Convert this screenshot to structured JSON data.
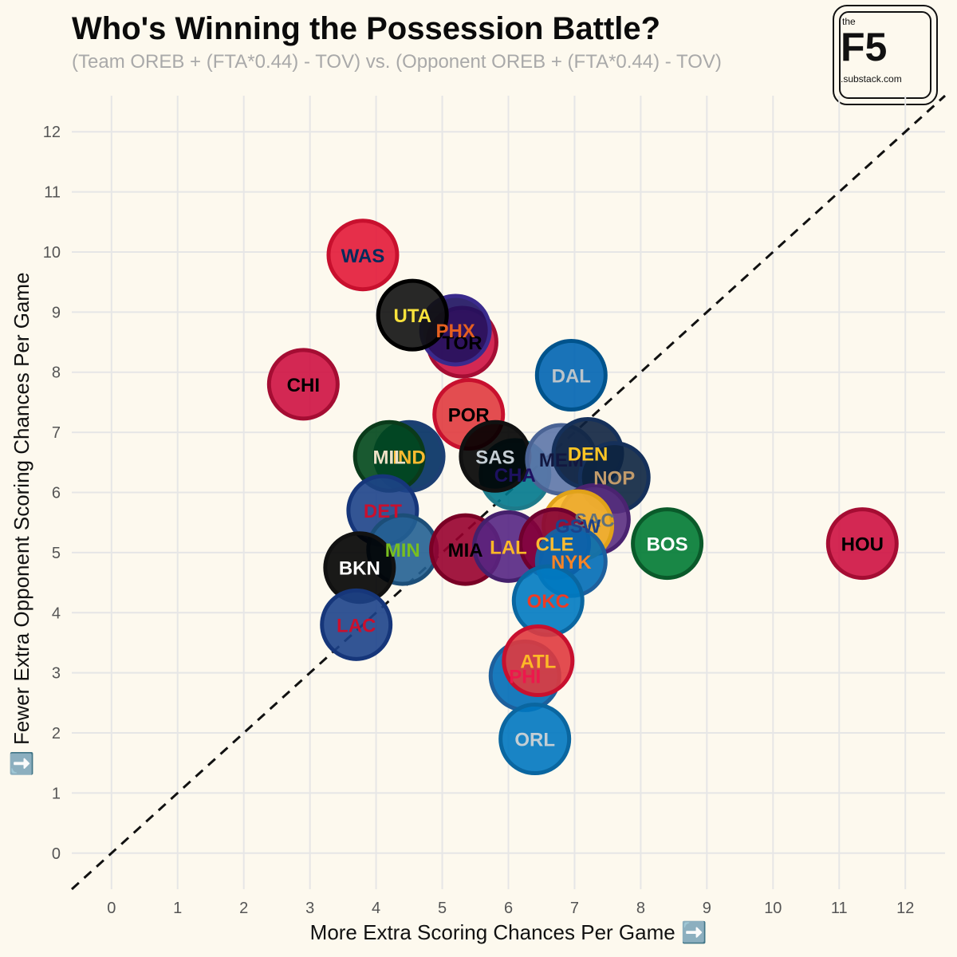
{
  "header": {
    "title": "Who's Winning the Possession Battle?",
    "subtitle": "(Team OREB + (FTA*0.44) - TOV) vs. (Opponent OREB + (FTA*0.44) - TOV)"
  },
  "logo": {
    "top_text": "the",
    "main_text": "F5",
    "bottom_text": ".substack.com"
  },
  "chart_data": {
    "type": "scatter",
    "title": "Who's Winning the Possession Battle?",
    "subtitle": "(Team OREB + (FTA*0.44) - TOV) vs. (Opponent OREB + (FTA*0.44) - TOV)",
    "xlabel": "More Extra Scoring Chances Per Game ➡️",
    "ylabel": "⬇️ Fewer Extra Opponent Scoring Chances Per Game",
    "xlim": [
      -0.6,
      12.6
    ],
    "ylim": [
      -0.6,
      12.6
    ],
    "x_ticks": [
      "0",
      "1",
      "2",
      "3",
      "4",
      "5",
      "6",
      "7",
      "8",
      "9",
      "10",
      "11",
      "12"
    ],
    "y_ticks": [
      "0",
      "1",
      "2",
      "3",
      "4",
      "5",
      "6",
      "7",
      "8",
      "9",
      "10",
      "11",
      "12"
    ],
    "grid": true,
    "reference_line": "y = x (dashed)",
    "points": [
      {
        "team": "WAS",
        "x": 3.8,
        "y": 9.95,
        "fill": "#e31837",
        "stroke": "#c8102e",
        "text": "#002b5c"
      },
      {
        "team": "CHI",
        "x": 2.9,
        "y": 7.8,
        "fill": "#ce1141",
        "stroke": "#a50d33",
        "text": "#000000"
      },
      {
        "team": "TOR",
        "x": 5.3,
        "y": 8.5,
        "fill": "#ce1141",
        "stroke": "#a50d33",
        "text": "#000000"
      },
      {
        "team": "PHX",
        "x": 5.2,
        "y": 8.7,
        "fill": "#1d1160",
        "stroke": "#3a2a8c",
        "text": "#e56020"
      },
      {
        "team": "UTA",
        "x": 4.55,
        "y": 8.95,
        "fill": "#111111",
        "stroke": "#000000",
        "text": "#f9e23c"
      },
      {
        "team": "DAL",
        "x": 6.95,
        "y": 7.95,
        "fill": "#0064b1",
        "stroke": "#00538c",
        "text": "#bbc4ca"
      },
      {
        "team": "POR",
        "x": 5.4,
        "y": 7.3,
        "fill": "#e03a3e",
        "stroke": "#c8102e",
        "text": "#000000"
      },
      {
        "team": "IND",
        "x": 4.5,
        "y": 6.6,
        "fill": "#002d62",
        "stroke": "#1c3f73",
        "text": "#fdbb30"
      },
      {
        "team": "MIL",
        "x": 4.2,
        "y": 6.6,
        "fill": "#00471b",
        "stroke": "#0a3a1a",
        "text": "#eee1c6"
      },
      {
        "team": "CHA",
        "x": 6.1,
        "y": 6.3,
        "fill": "#00788c",
        "stroke": "#1d7a8a",
        "text": "#1d1160"
      },
      {
        "team": "SAS",
        "x": 5.8,
        "y": 6.6,
        "fill": "#000000",
        "stroke": "#111111",
        "text": "#c4ced4"
      },
      {
        "team": "MEM",
        "x": 6.8,
        "y": 6.55,
        "fill": "#5d76a9",
        "stroke": "#4a6394",
        "text": "#12173f"
      },
      {
        "team": "DEN",
        "x": 7.2,
        "y": 6.65,
        "fill": "#0e2240",
        "stroke": "#15305a",
        "text": "#fec524"
      },
      {
        "team": "NOP",
        "x": 7.6,
        "y": 6.25,
        "fill": "#0c2340",
        "stroke": "#15305a",
        "text": "#c29b6b"
      },
      {
        "team": "DET",
        "x": 4.1,
        "y": 5.7,
        "fill": "#1d428a",
        "stroke": "#16367a",
        "text": "#c8102e"
      },
      {
        "team": "SAC",
        "x": 7.3,
        "y": 5.55,
        "fill": "#5a2d81",
        "stroke": "#4a2370",
        "text": "#63727a"
      },
      {
        "team": "GSW",
        "x": 7.05,
        "y": 5.45,
        "fill": "#fdb927",
        "stroke": "#e0a21a",
        "text": "#1d428a"
      },
      {
        "team": "MIN",
        "x": 4.4,
        "y": 5.05,
        "fill": "#236192",
        "stroke": "#1c4e78",
        "text": "#78be20"
      },
      {
        "team": "MIA",
        "x": 5.35,
        "y": 5.05,
        "fill": "#98002e",
        "stroke": "#7a0025",
        "text": "#000000"
      },
      {
        "team": "LAL",
        "x": 6.0,
        "y": 5.1,
        "fill": "#552583",
        "stroke": "#45206c",
        "text": "#fdb927"
      },
      {
        "team": "CLE",
        "x": 6.7,
        "y": 5.15,
        "fill": "#860038",
        "stroke": "#6f002e",
        "text": "#fdbb30"
      },
      {
        "team": "NYK",
        "x": 6.95,
        "y": 4.85,
        "fill": "#006bb6",
        "stroke": "#1d5f9c",
        "text": "#f58426"
      },
      {
        "team": "BKN",
        "x": 3.75,
        "y": 4.75,
        "fill": "#000000",
        "stroke": "#111111",
        "text": "#ffffff"
      },
      {
        "team": "OKC",
        "x": 6.6,
        "y": 4.2,
        "fill": "#007ac1",
        "stroke": "#0a66a0",
        "text": "#ef3b24"
      },
      {
        "team": "LAC",
        "x": 3.7,
        "y": 3.8,
        "fill": "#1d428a",
        "stroke": "#16367a",
        "text": "#c8102e"
      },
      {
        "team": "PHI",
        "x": 6.25,
        "y": 2.95,
        "fill": "#006bb6",
        "stroke": "#1d5f9c",
        "text": "#ed174c"
      },
      {
        "team": "ATL",
        "x": 6.45,
        "y": 3.2,
        "fill": "#e03a3e",
        "stroke": "#c8102e",
        "text": "#fdb927"
      },
      {
        "team": "ORL",
        "x": 6.4,
        "y": 1.9,
        "fill": "#0077c0",
        "stroke": "#0a66a0",
        "text": "#c4ced4"
      },
      {
        "team": "BOS",
        "x": 8.4,
        "y": 5.15,
        "fill": "#007a33",
        "stroke": "#0a5a2a",
        "text": "#ffffff"
      },
      {
        "team": "HOU",
        "x": 11.35,
        "y": 5.15,
        "fill": "#ce1141",
        "stroke": "#a50d33",
        "text": "#000000"
      }
    ]
  }
}
